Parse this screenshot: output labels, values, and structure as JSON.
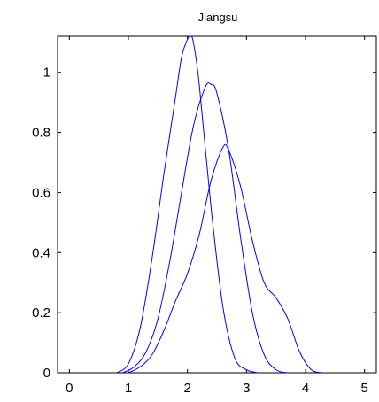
{
  "chart_data": {
    "type": "line",
    "title": "Jiangsu",
    "xlabel": "",
    "ylabel": "",
    "xlim": [
      -0.2,
      5.2
    ],
    "ylim": [
      0,
      1.12
    ],
    "xticks": [
      0,
      1,
      2,
      3,
      4,
      5
    ],
    "yticks": [
      0,
      0.2,
      0.4,
      0.6,
      0.8,
      1
    ],
    "xtick_labels": [
      "0",
      "1",
      "2",
      "3",
      "4",
      "5"
    ],
    "ytick_labels": [
      "0",
      "0.2",
      "0.4",
      "0.6",
      "0.8",
      "1"
    ],
    "grid": false,
    "legend": "none",
    "line_color": "#0000ff",
    "series": [
      {
        "x": [
          0.8,
          1.0,
          1.2,
          1.4,
          1.6,
          1.8,
          1.9,
          2.0,
          2.05,
          2.1,
          2.2,
          2.4,
          2.6,
          2.8,
          3.0,
          3.2
        ],
        "y": [
          0.0,
          0.03,
          0.15,
          0.38,
          0.66,
          0.92,
          1.05,
          1.11,
          1.12,
          1.1,
          0.96,
          0.55,
          0.22,
          0.05,
          0.01,
          0.0
        ]
      },
      {
        "x": [
          0.9,
          1.1,
          1.3,
          1.5,
          1.7,
          1.9,
          2.1,
          2.3,
          2.4,
          2.5,
          2.7,
          2.9,
          3.1,
          3.3,
          3.5,
          3.7
        ],
        "y": [
          0.0,
          0.02,
          0.07,
          0.18,
          0.37,
          0.6,
          0.82,
          0.95,
          0.96,
          0.93,
          0.74,
          0.45,
          0.2,
          0.06,
          0.01,
          0.0
        ]
      },
      {
        "x": [
          1.0,
          1.2,
          1.4,
          1.6,
          1.8,
          2.0,
          2.2,
          2.4,
          2.6,
          2.7,
          2.9,
          3.1,
          3.3,
          3.5,
          3.7,
          3.9,
          4.1,
          4.3
        ],
        "y": [
          0.0,
          0.02,
          0.06,
          0.14,
          0.24,
          0.33,
          0.46,
          0.64,
          0.75,
          0.74,
          0.62,
          0.44,
          0.3,
          0.25,
          0.18,
          0.07,
          0.01,
          0.0
        ]
      }
    ]
  }
}
